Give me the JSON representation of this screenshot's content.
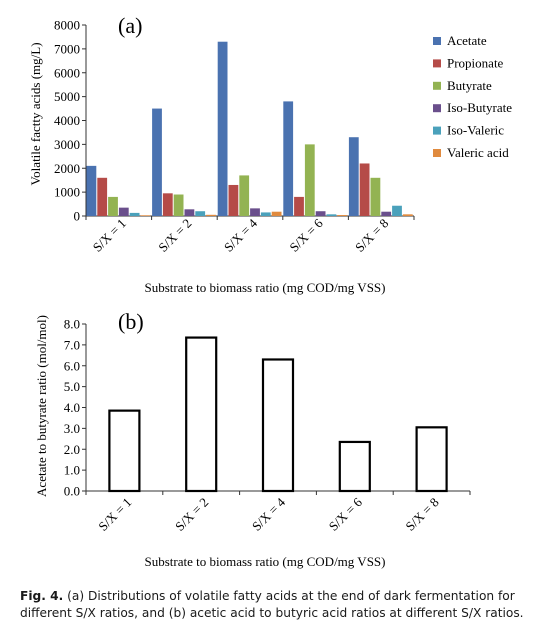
{
  "chart_data": [
    {
      "type": "bar",
      "panel_label": "(a)",
      "ylabel": "Volatile factty acids (mg/L)",
      "xlabel": "Substrate to biomass ratio (mg COD/mg VSS)",
      "ylim": [
        0,
        8000
      ],
      "yticks": [
        "0",
        "1000",
        "2000",
        "3000",
        "4000",
        "5000",
        "6000",
        "7000",
        "8000"
      ],
      "categories": [
        "S/X = 1",
        "S/X = 2",
        "S/X = 4",
        "S/X = 6",
        "S/X = 8"
      ],
      "legend_position": "right",
      "grid": false,
      "series": [
        {
          "name": "Acetate",
          "color": "#4a72b0",
          "values": [
            2100,
            4500,
            7300,
            4800,
            3300
          ]
        },
        {
          "name": "Propionate",
          "color": "#b54b48",
          "values": [
            1600,
            950,
            1300,
            800,
            2200
          ]
        },
        {
          "name": "Butyrate",
          "color": "#93b352",
          "values": [
            800,
            900,
            1700,
            3000,
            1600
          ]
        },
        {
          "name": "Iso-Butyrate",
          "color": "#6a4f8c",
          "values": [
            350,
            280,
            320,
            200,
            180
          ]
        },
        {
          "name": "Iso-Valeric",
          "color": "#4aa1bb",
          "values": [
            130,
            200,
            150,
            70,
            430
          ]
        },
        {
          "name": "Valeric acid",
          "color": "#e08a3e",
          "values": [
            30,
            50,
            180,
            40,
            70
          ]
        }
      ]
    },
    {
      "type": "bar",
      "panel_label": "(b)",
      "ylabel": "Acetate to butyrate ratio (mol/mol)",
      "xlabel": "Substrate to biomass ratio (mg COD/mg VSS)",
      "ylim": [
        0,
        8
      ],
      "yticks": [
        "0.0",
        "1.0",
        "2.0",
        "3.0",
        "4.0",
        "5.0",
        "6.0",
        "7.0",
        "8.0"
      ],
      "categories": [
        "S/X = 1",
        "S/X = 2",
        "S/X = 4",
        "S/X = 6",
        "S/X = 8"
      ],
      "grid": false,
      "series": [
        {
          "color": "#000000",
          "values": [
            3.85,
            7.35,
            6.3,
            2.35,
            3.05
          ]
        }
      ]
    }
  ],
  "caption": {
    "label": "Fig. 4.",
    "text": " (a) Distributions of volatile fatty acids at the end of dark fermentation for different S/X ratios, and (b) acetic acid to butyric acid ratios at different S/X ratios."
  }
}
